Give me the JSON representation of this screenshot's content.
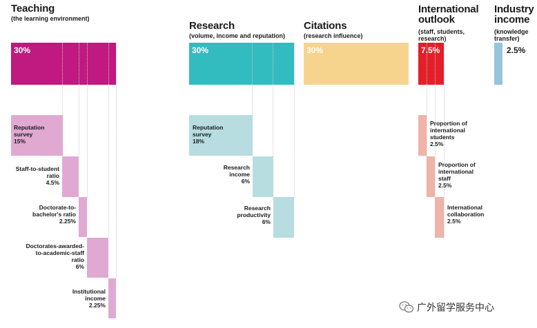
{
  "colors": {
    "teaching": "#c0197f",
    "teaching_light": "#e0a9d2",
    "research": "#32bcc0",
    "research_light": "#b7dde1",
    "citations": "#f7d48d",
    "international": "#e41f2a",
    "international_light": "#f0b3a8",
    "industry": "#96c4dc"
  },
  "teaching": {
    "title": "Teaching",
    "subtitle": "(the learning environment)",
    "weight": "30%",
    "items": [
      {
        "line1": "Reputation",
        "line2": "survey",
        "value": "15%"
      },
      {
        "line1": "Staff-to-student",
        "line2": "ratio",
        "value": "4.5%"
      },
      {
        "line1": "Doctorate-to-",
        "line2": "bachelor's ratio",
        "value": "2.25%"
      },
      {
        "line1": "Doctorates-awarded-",
        "line2": "to-academic-staff",
        "line3": "ratio",
        "value": "6%"
      },
      {
        "line1": "Institutional",
        "line2": "income",
        "value": "2.25%"
      }
    ]
  },
  "research": {
    "title": "Research",
    "subtitle": "(volume, income and reputation)",
    "weight": "30%",
    "items": [
      {
        "line1": "Reputation",
        "line2": "survey",
        "value": "18%"
      },
      {
        "line1": "Research",
        "line2": "income",
        "value": "6%"
      },
      {
        "line1": "Research",
        "line2": "productivity",
        "value": "6%"
      }
    ]
  },
  "citations": {
    "title": "Citations",
    "subtitle": "(research influence)",
    "weight": "30%"
  },
  "international": {
    "title1": "International",
    "title2": "outlook",
    "subtitle1": "(staff, students,",
    "subtitle2": "research)",
    "weight": "7.5%",
    "items": [
      {
        "line1": "Proportion of",
        "line2": "international",
        "line3": "students",
        "value": "2.5%"
      },
      {
        "line1": "Proportion of",
        "line2": "international",
        "line3": "staff",
        "value": "2.5%"
      },
      {
        "line1": "International",
        "line2": "collaboration",
        "value": "2.5%"
      }
    ]
  },
  "industry": {
    "title1": "Industry",
    "title2": "income",
    "subtitle1": "(knowledge",
    "subtitle2": "transfer)",
    "weight": "2.5%"
  },
  "watermark": "广外留学服务中心"
}
